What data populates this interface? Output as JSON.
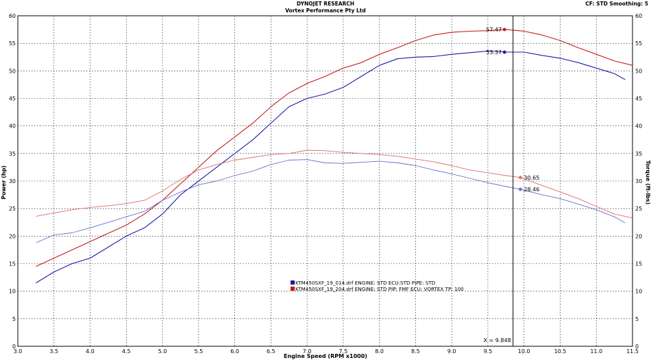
{
  "header": {
    "title": "DYNOJET RESEARCH",
    "subtitle": "Vortex Performance Pty Ltd",
    "settings": "CF: STD   Smoothing: 5"
  },
  "chart_data": {
    "type": "line",
    "xlabel": "Engine Speed (RPM x1000)",
    "ylabel_left": "Power (hp)",
    "ylabel_right": "Torque (ft-lbs)",
    "xlim": [
      3.0,
      11.5
    ],
    "ylim": [
      0,
      60
    ],
    "x_ticks": [
      "3.0",
      "3.5",
      "4.0",
      "4.5",
      "5.0",
      "5.5",
      "6.0",
      "6.5",
      "7.0",
      "7.5",
      "8.0",
      "8.5",
      "9.0",
      "9.5",
      "10.0",
      "10.5",
      "11.0",
      "11.5"
    ],
    "y_ticks": [
      "0",
      "5",
      "10",
      "15",
      "20",
      "25",
      "30",
      "35",
      "40",
      "45",
      "50",
      "55",
      "60"
    ],
    "grid": true,
    "cursor": {
      "x": 9.848,
      "label": "X = 9.848"
    },
    "legend": {
      "placement": "lower-center",
      "entries": [
        {
          "text": "KTM450SXF_19_014.drf ENGINE: STD ECU:STD PIPE: STD",
          "color": "#1a1aa6"
        },
        {
          "text": "KTM450SXF_19_204.drf ENGINE: STD PIP: FMF  ECU: VORTEX TP: 100",
          "color": "#c41a1a"
        }
      ]
    },
    "series": [
      {
        "kind": "power",
        "run": 0,
        "color": "#1a1aa6",
        "x": [
          3.25,
          3.5,
          3.75,
          4.0,
          4.25,
          4.5,
          4.75,
          5.0,
          5.25,
          5.5,
          5.75,
          6.0,
          6.25,
          6.5,
          6.75,
          7.0,
          7.25,
          7.5,
          7.75,
          8.0,
          8.25,
          8.5,
          8.75,
          9.0,
          9.25,
          9.5,
          9.75,
          10.0,
          10.25,
          10.5,
          10.75,
          11.0,
          11.25,
          11.4
        ],
        "y": [
          11.5,
          13.5,
          15.0,
          16.0,
          18.0,
          20.0,
          21.5,
          24.0,
          27.5,
          30.0,
          32.5,
          35.0,
          37.5,
          40.5,
          43.5,
          45.0,
          45.8,
          47.0,
          49.0,
          51.0,
          52.2,
          52.5,
          52.6,
          53.0,
          53.3,
          53.6,
          53.4,
          53.4,
          52.8,
          52.3,
          51.5,
          50.5,
          49.5,
          48.4
        ],
        "marker": {
          "x": 9.73,
          "value": "53.37"
        }
      },
      {
        "kind": "power",
        "run": 1,
        "color": "#c41a1a",
        "x": [
          3.25,
          3.5,
          3.75,
          4.0,
          4.25,
          4.5,
          4.75,
          5.0,
          5.25,
          5.5,
          5.75,
          6.0,
          6.25,
          6.5,
          6.75,
          7.0,
          7.25,
          7.5,
          7.75,
          8.0,
          8.25,
          8.5,
          8.75,
          9.0,
          9.25,
          9.5,
          9.75,
          10.0,
          10.25,
          10.5,
          10.75,
          11.0,
          11.25,
          11.5
        ],
        "y": [
          14.5,
          16.0,
          17.5,
          19.0,
          20.5,
          22.0,
          24.0,
          26.5,
          29.5,
          32.5,
          35.5,
          38.0,
          40.5,
          43.5,
          46.0,
          47.7,
          49.0,
          50.5,
          51.5,
          53.0,
          54.2,
          55.5,
          56.5,
          57.0,
          57.2,
          57.3,
          57.5,
          57.2,
          56.5,
          55.5,
          54.2,
          53.0,
          51.8,
          51.0
        ],
        "marker": {
          "x": 9.73,
          "value": "57.47"
        }
      },
      {
        "kind": "torque",
        "run": 0,
        "color": "#6b6bd4",
        "x": [
          3.25,
          3.5,
          3.75,
          4.0,
          4.25,
          4.5,
          4.75,
          5.0,
          5.25,
          5.5,
          5.75,
          6.0,
          6.25,
          6.5,
          6.75,
          7.0,
          7.25,
          7.5,
          7.75,
          8.0,
          8.25,
          8.5,
          8.75,
          9.0,
          9.25,
          9.5,
          9.75,
          9.95,
          10.25,
          10.5,
          10.75,
          11.0,
          11.25,
          11.4
        ],
        "y": [
          18.8,
          20.2,
          20.6,
          21.5,
          22.5,
          23.5,
          24.5,
          26.5,
          28.0,
          29.3,
          30.0,
          31.0,
          31.8,
          33.0,
          33.8,
          33.9,
          33.3,
          33.2,
          33.4,
          33.6,
          33.3,
          32.8,
          32.0,
          31.3,
          30.5,
          29.7,
          29.0,
          28.5,
          27.5,
          26.8,
          25.8,
          24.8,
          23.5,
          22.4
        ],
        "marker": {
          "x": 9.95,
          "value": "28.46"
        }
      },
      {
        "kind": "torque",
        "run": 1,
        "color": "#e06a6a",
        "x": [
          3.25,
          3.5,
          3.75,
          4.0,
          4.25,
          4.5,
          4.75,
          5.0,
          5.25,
          5.5,
          5.75,
          6.0,
          6.25,
          6.5,
          6.75,
          7.0,
          7.25,
          7.5,
          7.75,
          8.0,
          8.25,
          8.5,
          8.75,
          9.0,
          9.25,
          9.5,
          9.75,
          9.95,
          10.25,
          10.5,
          10.75,
          11.0,
          11.25,
          11.5
        ],
        "y": [
          23.6,
          24.2,
          24.8,
          25.2,
          25.5,
          25.9,
          26.5,
          28.2,
          30.3,
          32.0,
          33.0,
          33.8,
          34.3,
          34.8,
          35.0,
          35.6,
          35.5,
          35.2,
          35.0,
          34.8,
          34.5,
          34.0,
          33.5,
          32.8,
          32.0,
          31.5,
          31.0,
          30.65,
          29.2,
          28.0,
          26.8,
          25.4,
          24.0,
          23.3
        ],
        "marker": {
          "x": 9.95,
          "value": "30.65"
        }
      }
    ]
  }
}
